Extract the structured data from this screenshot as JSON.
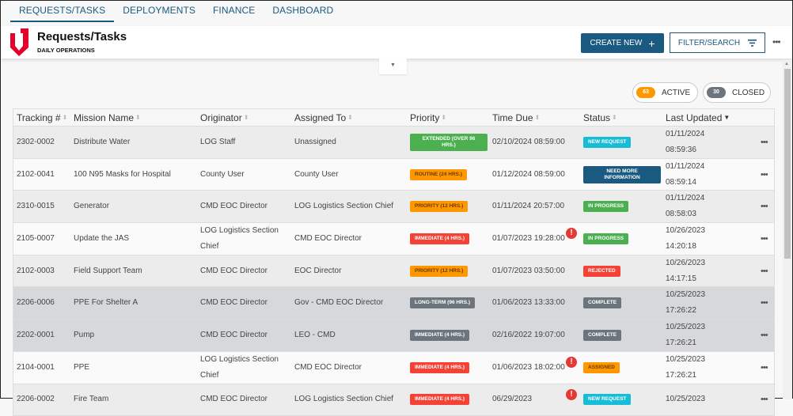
{
  "tabs": [
    "REQUESTS/TASKS",
    "DEPLOYMENTS",
    "FINANCE",
    "DASHBOARD"
  ],
  "header": {
    "title": "Requests/Tasks",
    "subtitle": "DAILY OPERATIONS",
    "create_label": "CREATE NEW",
    "filter_label": "FILTER/SEARCH"
  },
  "counts": {
    "active_count": "63",
    "active_label": "ACTIVE",
    "closed_count": "30",
    "closed_label": "CLOSED"
  },
  "columns": [
    "Tracking #",
    "Mission Name",
    "Originator",
    "Assigned To",
    "Priority",
    "Time Due",
    "Status",
    "Last Updated"
  ],
  "colors": {
    "brand": "#1a5a80",
    "green": "#4caf50",
    "orange": "#ff9800",
    "red": "#f44336",
    "gray": "#6c757d",
    "cyan": "#17bcd6",
    "navy": "#1a5a80"
  },
  "rows": [
    {
      "id": "2302-0002",
      "mission": "Distribute Water",
      "originator": "LOG Staff",
      "assigned": "Unassigned",
      "priority": "EXTENDED (OVER 96 HRS.)",
      "priority_color": "green",
      "due": "02/10/2024 08:59:00",
      "status": "NEW REQUEST",
      "status_color": "cyan",
      "updated": "01/11/2024 08:59:36",
      "bg": "g",
      "warn": false
    },
    {
      "id": "2102-0041",
      "mission": "100 N95 Masks for Hospital",
      "originator": "County User",
      "assigned": "County User",
      "priority": "ROUTINE (24 HRS.)",
      "priority_color": "orange",
      "due": "01/12/2024 08:59:00",
      "status": "NEED MORE INFORMATION",
      "status_color": "navy",
      "updated": "01/11/2024 08:59:14",
      "bg": "w",
      "warn": false
    },
    {
      "id": "2310-0015",
      "mission": "Generator",
      "originator": "CMD EOC Director",
      "assigned": "LOG Logistics Section Chief",
      "priority": "PRIORITY (12 HRS.)",
      "priority_color": "orange",
      "due": "01/11/2024 20:57:00",
      "status": "IN PROGRESS",
      "status_color": "green",
      "updated": "01/11/2024 08:58:03",
      "bg": "g",
      "warn": false
    },
    {
      "id": "2105-0007",
      "mission": "Update the JAS",
      "originator": "LOG Logistics Section Chief",
      "assigned": "CMD EOC Director",
      "priority": "IMMEDIATE (4 HRS.)",
      "priority_color": "red",
      "due": "01/07/2023 19:28:00",
      "status": "IN PROGRESS",
      "status_color": "green",
      "updated": "10/26/2023 14:20:18",
      "bg": "w",
      "warn": true
    },
    {
      "id": "2102-0003",
      "mission": "Field Support Team",
      "originator": "CMD EOC Director",
      "assigned": "EOC Director",
      "priority": "PRIORITY (12 HRS.)",
      "priority_color": "orange",
      "due": "01/07/2023 03:50:00",
      "status": "REJECTED",
      "status_color": "red",
      "updated": "10/26/2023 14:17:15",
      "bg": "g",
      "warn": false
    },
    {
      "id": "2206-0006",
      "mission": "PPE For Shelter A",
      "originator": "CMD EOC Director",
      "assigned": "Gov - CMD EOC Director",
      "priority": "LONG-TERM (96 HRS.)",
      "priority_color": "gray",
      "due": "01/06/2023 13:33:00",
      "status": "COMPLETE",
      "status_color": "gray",
      "updated": "10/25/2023 17:26:22",
      "bg": "d",
      "warn": false
    },
    {
      "id": "2202-0001",
      "mission": "Pump",
      "originator": "CMD EOC Director",
      "assigned": "LEO - CMD",
      "priority": "IMMEDIATE (4 HRS.)",
      "priority_color": "gray",
      "due": "02/16/2022 19:07:00",
      "status": "COMPLETE",
      "status_color": "gray",
      "updated": "10/25/2023 17:26:21",
      "bg": "d",
      "warn": false
    },
    {
      "id": "2104-0001",
      "mission": "PPE",
      "originator": "LOG Logistics Section Chief",
      "assigned": "CMD EOC Director",
      "priority": "IMMEDIATE (4 HRS.)",
      "priority_color": "red",
      "due": "01/06/2023 18:02:00",
      "status": "ASSIGNED",
      "status_color": "orange",
      "updated": "10/25/2023 17:26:21",
      "bg": "w",
      "warn": true
    },
    {
      "id": "2206-0002",
      "mission": "Fire Team",
      "originator": "CMD EOC Director",
      "assigned": "LOG Logistics Section Chief",
      "priority": "IMMEDIATE (4 HRS.)",
      "priority_color": "red",
      "due": "06/29/2023",
      "status": "NEW REQUEST",
      "status_color": "cyan",
      "updated": "10/25/2023",
      "bg": "g",
      "warn": true
    }
  ]
}
